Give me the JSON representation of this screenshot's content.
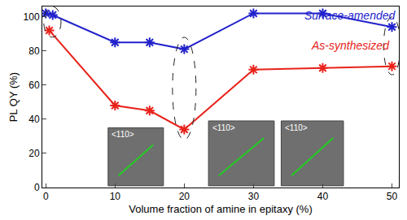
{
  "chart_data": {
    "type": "line",
    "x_label": "Volume fraction of amine in epitaxy (%)",
    "y_label": "PL QY (%)",
    "xlim": [
      -0.5,
      51
    ],
    "xticks": [
      0,
      10,
      20,
      30,
      40,
      50
    ],
    "ylim": [
      0,
      106
    ],
    "yticks": [
      0,
      20,
      40,
      60,
      80,
      100
    ],
    "grid": false,
    "marker": "asterisk",
    "series": [
      {
        "name": "Surface-amended",
        "color": "#2222cc",
        "x": [
          0,
          1,
          10,
          15,
          20,
          30,
          40,
          50
        ],
        "values": [
          102,
          101,
          85,
          85,
          81,
          102,
          102,
          94
        ]
      },
      {
        "name": "As-synthesized",
        "color": "#e8221a",
        "x": [
          0.5,
          10,
          15,
          20,
          30,
          40,
          50
        ],
        "values": [
          92,
          48,
          45,
          34,
          69,
          70,
          71
        ]
      }
    ],
    "annotations": [
      "<110>",
      "<110>",
      "<110>"
    ]
  }
}
